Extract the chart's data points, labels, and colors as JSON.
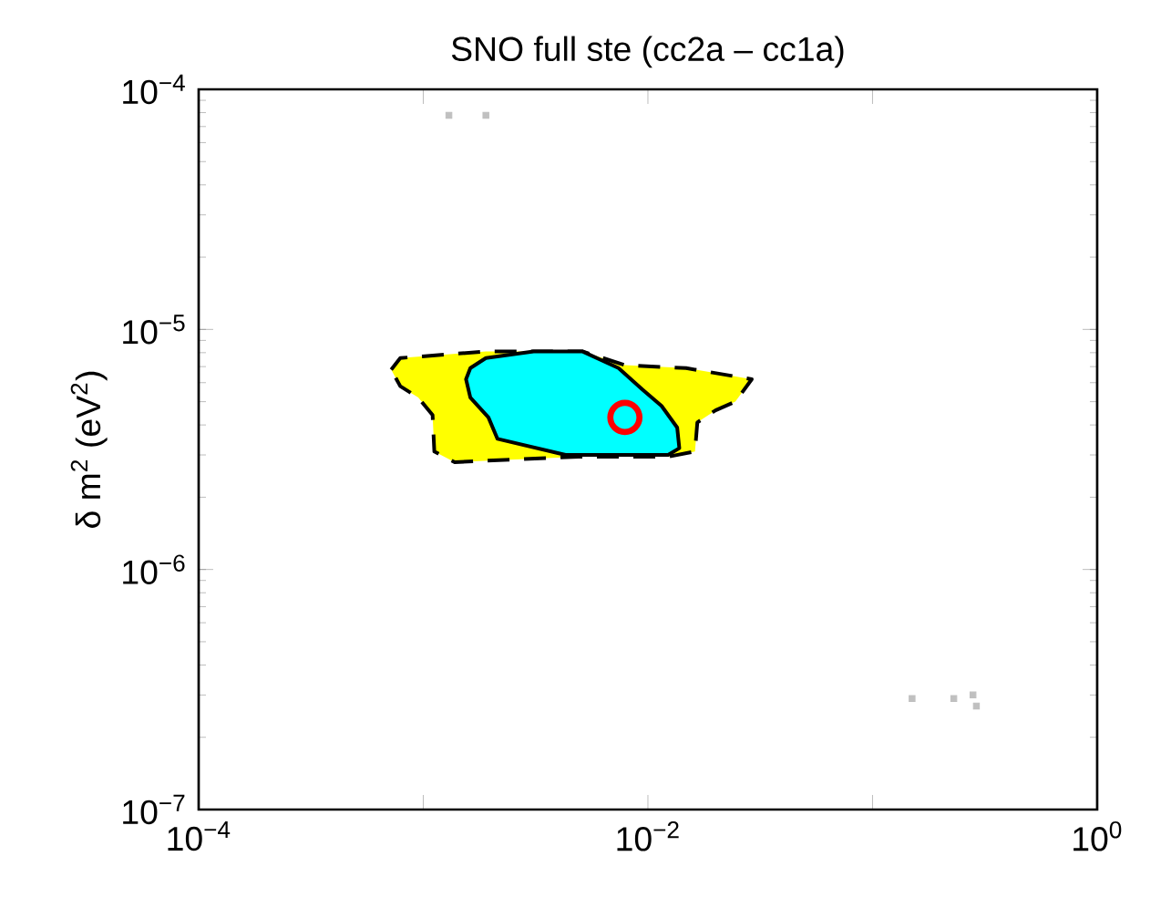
{
  "chart_data": {
    "type": "area",
    "title": "SNO full ste (cc2a – cc1a)",
    "ylabel": "δ m$^{2}$ (eV$^{2}$)",
    "log": "xy",
    "xlim": [
      0.0001,
      1
    ],
    "ylim": [
      1e-07,
      0.0001
    ],
    "xticks": [
      {
        "value": 0.0001,
        "label": "10$^{−4}$"
      },
      {
        "value": 0.001,
        "label": null
      },
      {
        "value": 0.01,
        "label": "10$^{−2}$"
      },
      {
        "value": 0.1,
        "label": null
      },
      {
        "value": 1,
        "label": "10$^{0}$"
      }
    ],
    "yticks": [
      {
        "value": 1e-07,
        "label": "10$^{−7}$"
      },
      {
        "value": 1e-06,
        "label": "10$^{−6}$"
      },
      {
        "value": 1e-05,
        "label": "10$^{−5}$"
      },
      {
        "value": 0.0001,
        "label": "10$^{−4}$"
      }
    ],
    "series": [
      {
        "color": "#ffff00",
        "line_style": "dashed",
        "x": [
          0.00072,
          0.00079,
          0.0019,
          0.0051,
          0.0079,
          0.0148,
          0.029,
          0.0245,
          0.02,
          0.0166,
          0.0162,
          0.0123,
          0.0049,
          0.00138,
          0.00112,
          0.0011,
          0.00095,
          0.00079
        ],
        "values": [
          6.8e-06,
          7.6e-06,
          8.1e-06,
          8.1e-06,
          7.1e-06,
          6.9e-06,
          6.2e-06,
          5e-06,
          4.6e-06,
          4.1e-06,
          3.1e-06,
          2.95e-06,
          2.95e-06,
          2.8e-06,
          3.1e-06,
          4.4e-06,
          5.2e-06,
          5.8e-06
        ]
      },
      {
        "color": "#00ffff",
        "line_style": "solid",
        "x": [
          0.00162,
          0.0019,
          0.0031,
          0.0051,
          0.0074,
          0.0095,
          0.0115,
          0.0135,
          0.0138,
          0.0123,
          0.0043,
          0.00214,
          0.00195,
          0.00162,
          0.00155
        ],
        "values": [
          6.9e-06,
          7.6e-06,
          8.1e-06,
          8.1e-06,
          6.9e-06,
          5.6e-06,
          4.8e-06,
          3.9e-06,
          3.2e-06,
          3e-06,
          3e-06,
          3.5e-06,
          4.3e-06,
          5.2e-06,
          6.2e-06
        ]
      },
      {
        "type": "scatter",
        "color": "#ff0000",
        "marker": "circle",
        "x": [
          0.0079
        ],
        "values": [
          4.3e-06
        ]
      },
      {
        "type": "scatter",
        "color": "#c0c0c0",
        "marker": "square",
        "x": [
          0.0013,
          0.0019,
          0.15,
          0.23,
          0.29,
          0.28
        ],
        "values": [
          7.8e-05,
          7.8e-05,
          2.9e-07,
          2.9e-07,
          2.7e-07,
          3e-07
        ]
      }
    ]
  }
}
